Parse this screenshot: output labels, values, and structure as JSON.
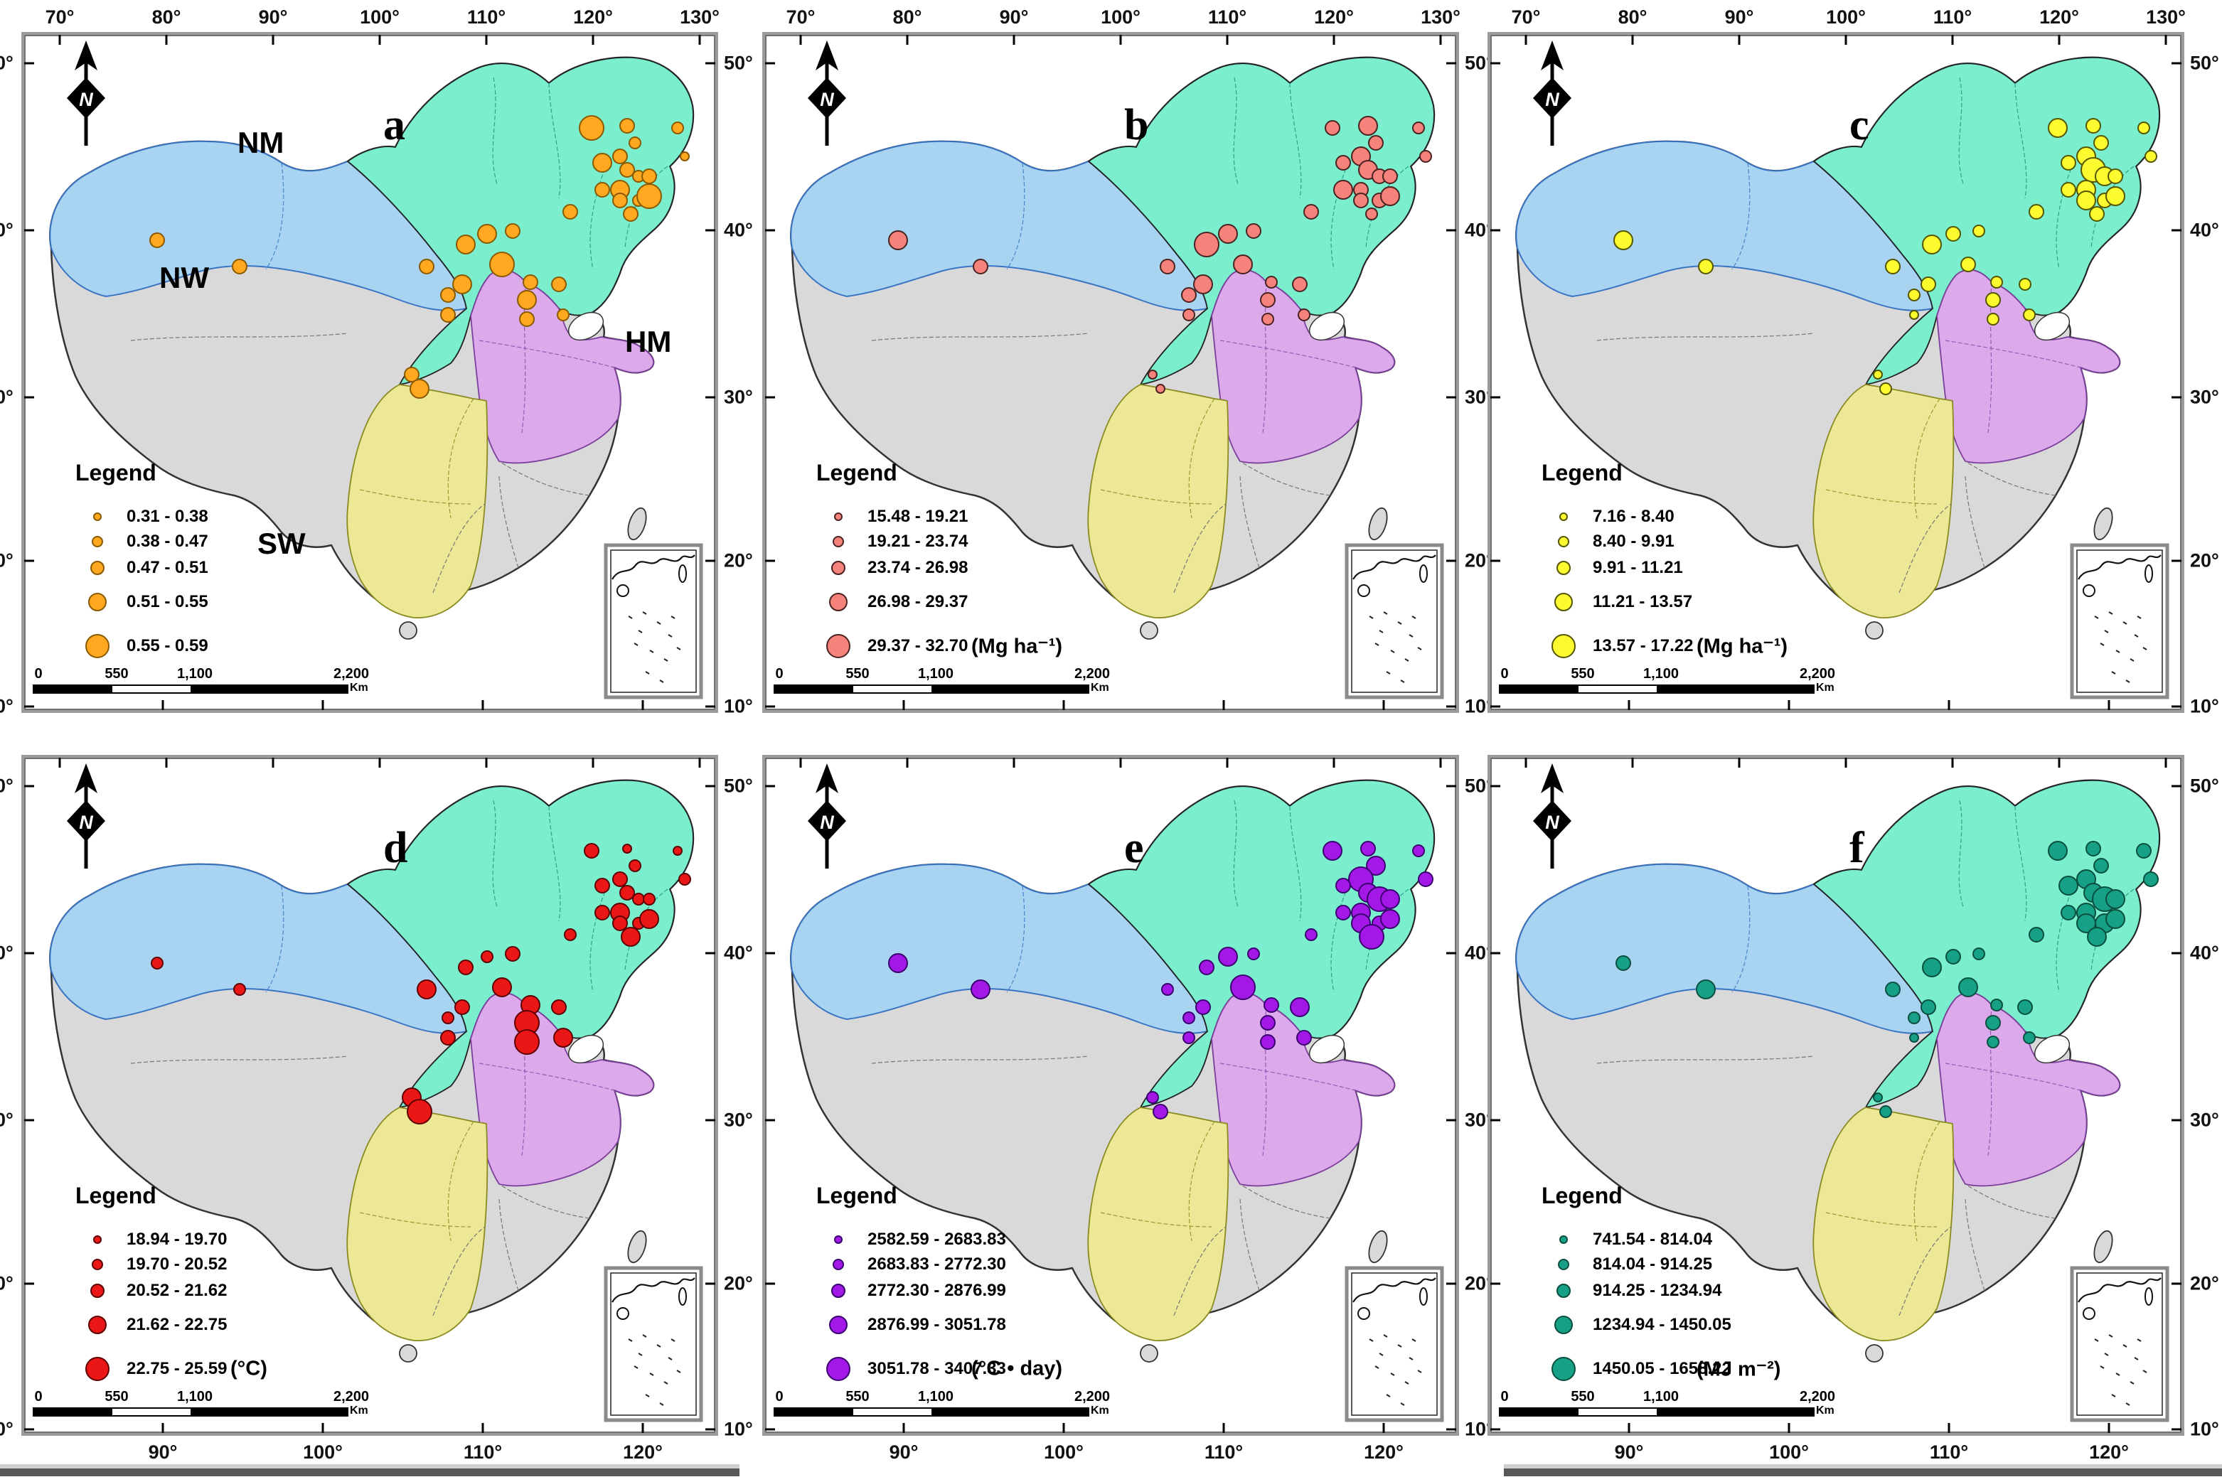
{
  "compass_label": "N",
  "legend_title": "Legend",
  "region_labels": {
    "nm": "NM",
    "nw": "NW",
    "hm": "HM",
    "sw": "SW"
  },
  "scalebar": {
    "labels": [
      "0",
      "550",
      "1,100",
      "2,200"
    ],
    "unit": "Km"
  },
  "axes": {
    "top_longitude": [
      "70°",
      "80°",
      "90°",
      "100°",
      "110°",
      "120°",
      "130°"
    ],
    "bottom_longitude": [
      "90°",
      "100°",
      "110°",
      "120°"
    ],
    "latitude": [
      "50°",
      "40°",
      "30°",
      "20°",
      "10°"
    ]
  },
  "map_colors": {
    "nw_region": "#A9D4F1",
    "nm_region": "#7BEECE",
    "hm_region": "#DCA9EB",
    "sw_region": "#ECE895",
    "other_region": "#D9D9D9"
  },
  "panels": [
    {
      "letter": "a",
      "unit": "",
      "circle_color": "#FFA820",
      "circle_stroke": "#8A5A00",
      "legend_items": [
        "0.31 - 0.38",
        "0.38 - 0.47",
        "0.47 - 0.51",
        "0.51 - 0.55",
        "0.55 - 0.59"
      ],
      "sizes": [
        3,
        3,
        5,
        3,
        2,
        3,
        2,
        1,
        4,
        3,
        2,
        3,
        4,
        3,
        3,
        2,
        3,
        3,
        5,
        4,
        3,
        4,
        5,
        3,
        4,
        3,
        3,
        3,
        4,
        3,
        3,
        2,
        3,
        4
      ]
    },
    {
      "letter": "b",
      "unit": "(Mg ha⁻¹)",
      "circle_color": "#F5837B",
      "circle_stroke": "#4a2321",
      "legend_items": [
        "15.48 - 19.21",
        "19.21 - 23.74",
        "23.74 - 26.98",
        "26.98 - 29.37",
        "29.37 - 32.70"
      ],
      "sizes": [
        4,
        3,
        3,
        4,
        3,
        4,
        2,
        2,
        3,
        4,
        3,
        3,
        3,
        4,
        3,
        3,
        2,
        3,
        4,
        4,
        3,
        5,
        4,
        3,
        4,
        3,
        2,
        3,
        3,
        2,
        2,
        2,
        1,
        1
      ]
    },
    {
      "letter": "c",
      "unit": "(Mg ha⁻¹)",
      "circle_color": "#FBFB30",
      "circle_stroke": "#555500",
      "legend_items": [
        "7.16 - 8.40",
        "8.40 - 9.91",
        "9.91 - 11.21",
        "11.21 - 13.57",
        "13.57 - 17.22"
      ],
      "sizes": [
        4,
        3,
        4,
        3,
        3,
        4,
        2,
        2,
        3,
        5,
        4,
        3,
        4,
        3,
        4,
        3,
        3,
        3,
        4,
        3,
        2,
        4,
        3,
        3,
        3,
        2,
        2,
        2,
        3,
        1,
        2,
        2,
        1,
        2
      ]
    },
    {
      "letter": "d",
      "unit": "(°C)",
      "circle_color": "#EB1717",
      "circle_stroke": "#5E0000",
      "legend_items": [
        "18.94 - 19.70",
        "19.70 - 20.52",
        "20.52 - 21.62",
        "21.62 - 22.75",
        "22.75 - 25.59"
      ],
      "sizes": [
        2,
        2,
        3,
        1,
        2,
        3,
        1,
        2,
        3,
        3,
        2,
        2,
        4,
        3,
        3,
        2,
        4,
        2,
        4,
        2,
        3,
        3,
        4,
        4,
        3,
        2,
        4,
        3,
        5,
        3,
        5,
        4,
        4,
        5
      ]
    },
    {
      "letter": "e",
      "unit": "(°C • day)",
      "circle_color": "#A318E6",
      "circle_stroke": "#3A0070",
      "legend_items": [
        "2582.59 - 2683.83",
        "2683.83 - 2772.30",
        "2772.30 - 2876.99",
        "2876.99 - 3051.78",
        "3051.78 - 3407.33"
      ],
      "sizes": [
        4,
        4,
        4,
        3,
        4,
        5,
        2,
        3,
        3,
        4,
        5,
        4,
        4,
        3,
        4,
        3,
        5,
        2,
        4,
        4,
        2,
        3,
        5,
        2,
        3,
        2,
        3,
        4,
        3,
        2,
        3,
        3,
        2,
        3
      ]
    },
    {
      "letter": "f",
      "unit": "(MJ m⁻²)",
      "circle_color": "#16A085",
      "circle_stroke": "#0A4F3F",
      "legend_items": [
        "741.54 - 814.04",
        "814.04 - 914.25",
        "914.25 - 1234.94",
        "1234.94 - 1450.05",
        "1450.05 - 1658.22"
      ],
      "sizes": [
        3,
        4,
        4,
        3,
        3,
        4,
        3,
        3,
        4,
        4,
        5,
        4,
        4,
        3,
        4,
        4,
        4,
        3,
        4,
        3,
        2,
        4,
        4,
        3,
        3,
        2,
        2,
        3,
        3,
        1,
        2,
        2,
        1,
        2
      ]
    }
  ],
  "sites": [
    [
      187,
      289
    ],
    [
      303,
      326
    ],
    [
      798,
      131
    ],
    [
      848,
      128
    ],
    [
      859,
      152
    ],
    [
      838,
      171
    ],
    [
      919,
      131
    ],
    [
      929,
      171
    ],
    [
      813,
      180
    ],
    [
      848,
      190
    ],
    [
      864,
      199
    ],
    [
      879,
      199
    ],
    [
      838,
      218
    ],
    [
      813,
      218
    ],
    [
      838,
      233
    ],
    [
      864,
      233
    ],
    [
      853,
      252
    ],
    [
      768,
      249
    ],
    [
      879,
      227
    ],
    [
      651,
      280
    ],
    [
      687,
      276
    ],
    [
      621,
      295
    ],
    [
      672,
      323
    ],
    [
      566,
      326
    ],
    [
      616,
      351
    ],
    [
      596,
      366
    ],
    [
      712,
      348
    ],
    [
      752,
      351
    ],
    [
      707,
      373
    ],
    [
      596,
      394
    ],
    [
      707,
      400
    ],
    [
      758,
      394
    ],
    [
      545,
      478
    ],
    [
      556,
      498
    ]
  ]
}
